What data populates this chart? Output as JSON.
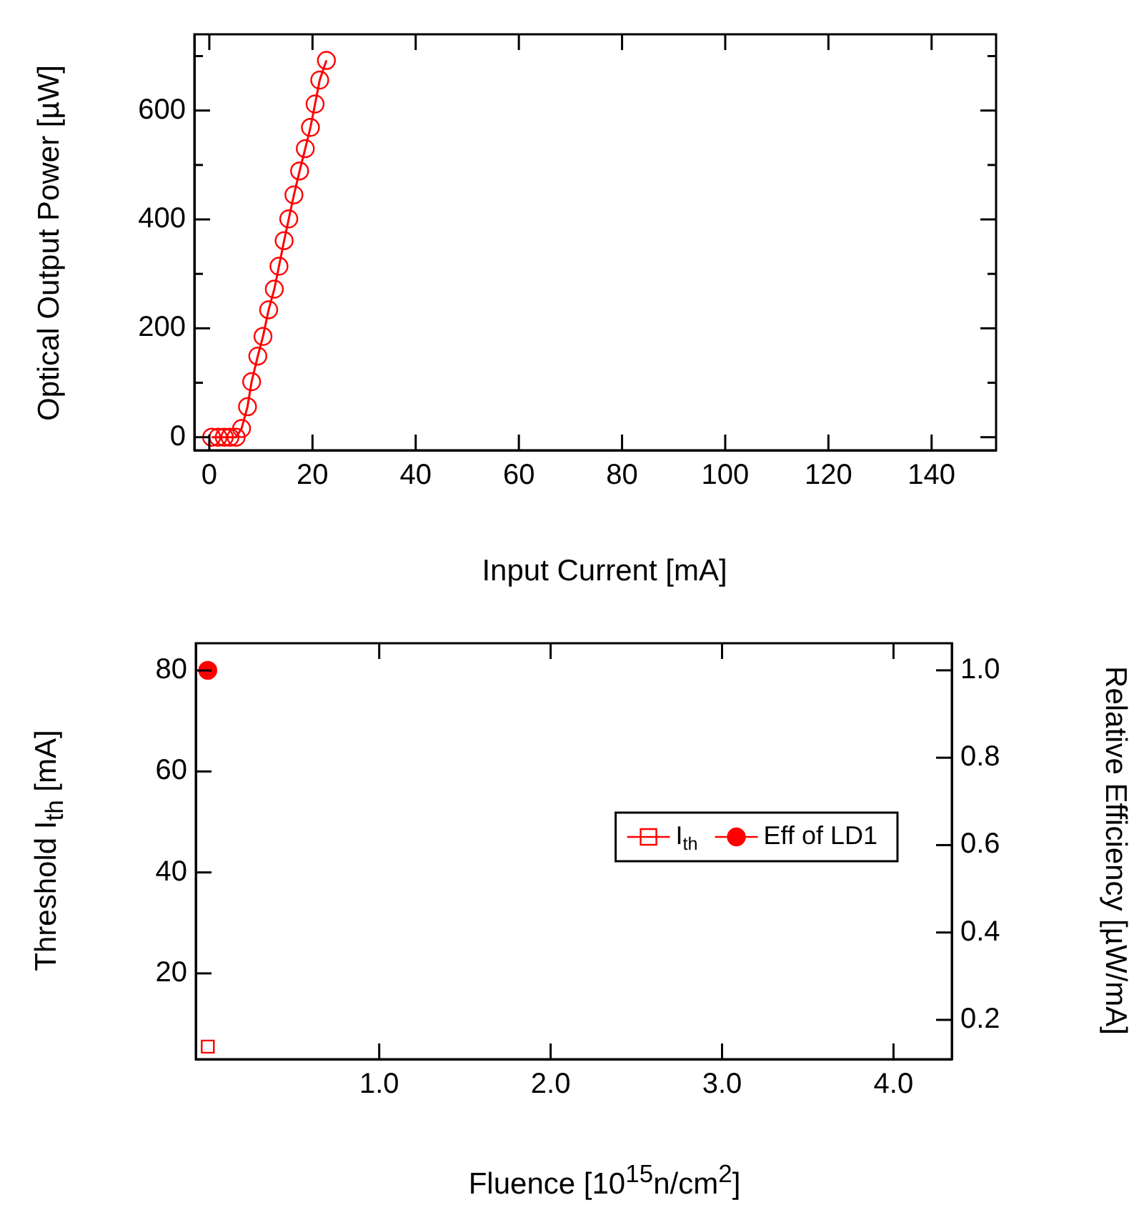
{
  "chart_data": [
    {
      "type": "line",
      "xlabel": "Input Current [mA]",
      "ylabel": "Optical Output Power [µW]",
      "x": [
        0.45,
        1.7,
        2.9,
        4.0,
        5.2,
        6.25,
        7.4,
        8.2,
        9.4,
        10.4,
        11.5,
        12.6,
        13.5,
        14.5,
        15.4,
        16.4,
        17.5,
        18.6,
        19.6,
        20.5,
        21.4,
        22.7
      ],
      "series": [
        {
          "color": "#ff0000",
          "values": [
            0,
            0,
            0,
            0,
            0,
            16,
            56,
            102,
            149,
            185,
            234,
            272,
            314,
            361,
            401,
            445,
            489,
            530,
            569,
            612,
            656,
            692
          ]
        }
      ],
      "marker": "circle",
      "xlim": [
        -2.9,
        152.5
      ],
      "xticks": [
        0,
        20,
        40,
        60,
        80,
        100,
        120,
        140
      ],
      "ylim": [
        -24,
        740
      ],
      "yticks": [
        0,
        {
          "value": 100,
          "label": null
        },
        200,
        {
          "value": 300,
          "label": null
        },
        400,
        {
          "value": 500,
          "label": null
        },
        600,
        {
          "value": 700,
          "label": null
        }
      ]
    },
    {
      "type": "scatter",
      "xlabel": "Fluence [10$^{15}$n/cm$^{2}$]",
      "ylabel": "Threshold I$_{th}$ [mA]",
      "y2label": "Relative Efficiency [µW/mA]",
      "xlim": [
        -0.07,
        4.34
      ],
      "xticks": [
        {
          "value": 1,
          "label": "1.0"
        },
        {
          "value": 2,
          "label": "2.0"
        },
        {
          "value": 3,
          "label": "3.0"
        },
        {
          "value": 4,
          "label": "4.0"
        }
      ],
      "ylim": [
        3,
        85.4
      ],
      "yticks": [
        20,
        40,
        60,
        80
      ],
      "y2lim": [
        0.11,
        1.062
      ],
      "y2ticks": [
        0.2,
        0.4,
        0.6,
        0.8,
        {
          "value": 1,
          "label": "1.0"
        }
      ],
      "legend": "right",
      "series": [
        {
          "name": "I$_{th}$",
          "color": "#ff0000",
          "x": [
            0
          ],
          "values": [
            5.5
          ],
          "marker": "square"
        },
        {
          "name": "Eff of LD1",
          "color": "#ff0000",
          "x": [
            0
          ],
          "values": [
            1.0
          ],
          "axis": "y2",
          "marker": "circle"
        }
      ]
    }
  ]
}
